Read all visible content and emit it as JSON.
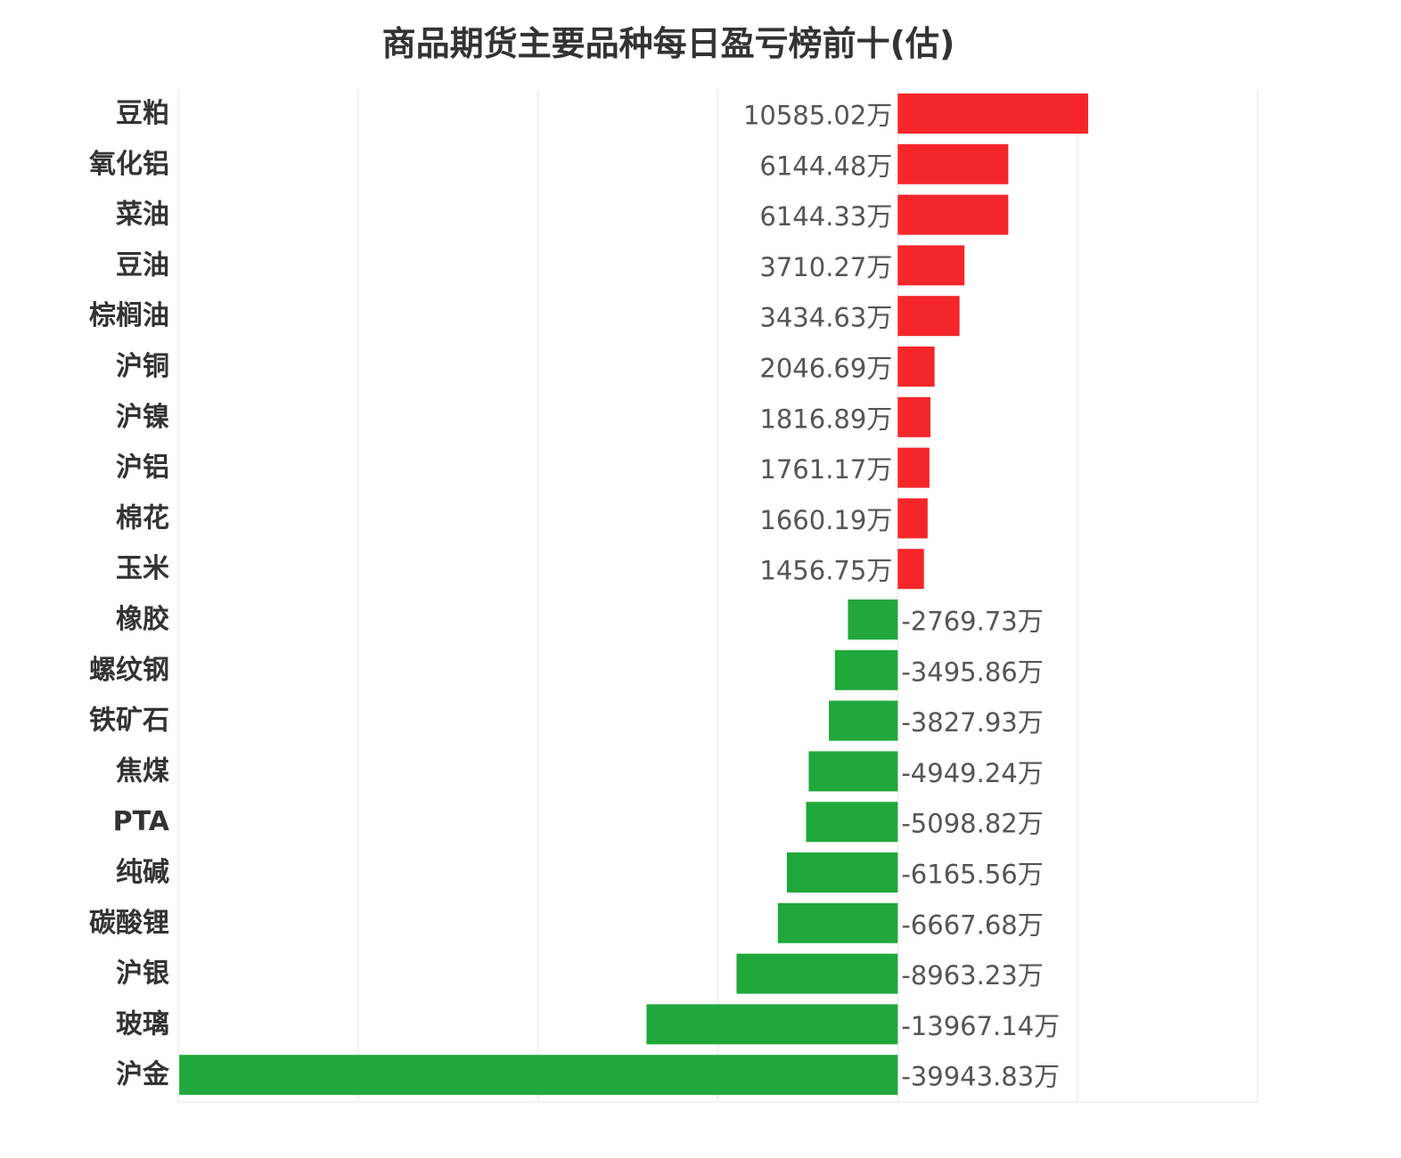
{
  "chart_data": {
    "type": "bar",
    "orientation": "horizontal",
    "title": "商品期货主要品种每日盈亏榜前十(估)",
    "unit_suffix": "万",
    "categories": [
      "豆粕",
      "氧化铝",
      "菜油",
      "豆油",
      "棕榈油",
      "沪铜",
      "沪镍",
      "沪铝",
      "棉花",
      "玉米",
      "橡胶",
      "螺纹钢",
      "铁矿石",
      "焦煤",
      "PTA",
      "纯碱",
      "碳酸锂",
      "沪银",
      "玻璃",
      "沪金"
    ],
    "values": [
      10585.02,
      6144.48,
      6144.33,
      3710.27,
      3434.63,
      2046.69,
      1816.89,
      1761.17,
      1660.19,
      1456.75,
      -2769.73,
      -3495.86,
      -3827.93,
      -4949.24,
      -5098.82,
      -6165.56,
      -6667.68,
      -8963.23,
      -13967.14,
      -39943.83
    ],
    "value_labels": [
      "10585.02万",
      "6144.48万",
      "6144.33万",
      "3710.27万",
      "3434.63万",
      "2046.69万",
      "1816.89万",
      "1761.17万",
      "1660.19万",
      "1456.75万",
      "-2769.73万",
      "-3495.86万",
      "-3827.93万",
      "-4949.24万",
      "-5098.82万",
      "-6165.56万",
      "-6667.68万",
      "-8963.23万",
      "-13967.14万",
      "-39943.83万"
    ],
    "xlim": [
      -40000,
      20000
    ],
    "gridlines": [
      -40000,
      -30000,
      -20000,
      -10000,
      0,
      10000,
      20000
    ],
    "grid": true,
    "legend": "none",
    "colors": {
      "positive": "#f5262a",
      "negative": "#21a83c",
      "grid": "#e6e6e6"
    }
  }
}
